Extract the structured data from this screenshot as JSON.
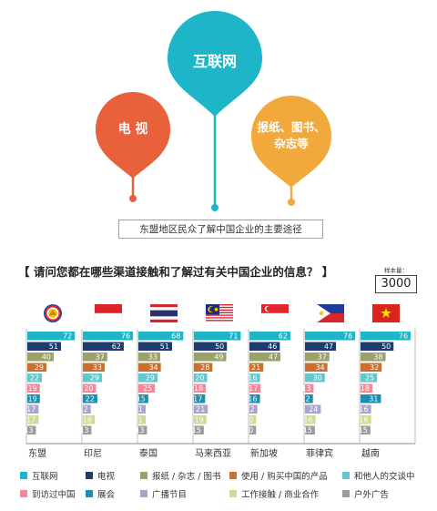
{
  "header_graphic": {
    "source_label": "东盟地区民众了解中国企业的主要途径",
    "pins": [
      {
        "label_lines": [
          "互联网"
        ],
        "color": "#1fb5c8"
      },
      {
        "label_lines": [
          "电 视"
        ],
        "color": "#e8613a"
      },
      {
        "label_lines": [
          "报纸、图书、",
          "杂志等"
        ],
        "color": "#f2a93b"
      }
    ]
  },
  "question": "【 请问您都在哪些渠道接触和了解过有关中国企业的信息？ 】",
  "sample": {
    "label": "样本量：",
    "value": "3000"
  },
  "flags": [
    "asean-flag",
    "indonesia-flag",
    "thailand-flag",
    "malaysia-flag",
    "singapore-flag",
    "philippines-flag",
    "vietnam-flag"
  ],
  "chart_data": {
    "type": "bar",
    "title": "",
    "xlabel": "",
    "ylabel": "",
    "xlim": [
      0,
      80
    ],
    "categories": [
      "东盟",
      "印尼",
      "泰国",
      "马来西亚",
      "新加坡",
      "菲律宾",
      "越南"
    ],
    "series": [
      {
        "name": "互联网",
        "color": "#1fb5c8",
        "values": [
          72,
          76,
          68,
          71,
          62,
          76,
          76
        ]
      },
      {
        "name": "电视",
        "color": "#1f3a6e",
        "values": [
          51,
          62,
          51,
          50,
          46,
          47,
          50
        ]
      },
      {
        "name": "报纸 / 杂志 / 图书",
        "color": "#9aa26a",
        "values": [
          40,
          37,
          33,
          49,
          47,
          37,
          38
        ]
      },
      {
        "name": "使用 / 购买中国的产品",
        "color": "#c9702e",
        "values": [
          29,
          33,
          34,
          28,
          21,
          34,
          32
        ]
      },
      {
        "name": "和他人的交谈中",
        "color": "#66c6ce",
        "values": [
          22,
          29,
          29,
          20,
          16,
          30,
          25
        ]
      },
      {
        "name": "到访过中国",
        "color": "#f08a9b",
        "values": [
          19,
          20,
          25,
          18,
          17,
          13,
          18
        ]
      },
      {
        "name": "展会",
        "color": "#1a8fb2",
        "values": [
          19,
          22,
          15,
          17,
          16,
          12,
          31
        ]
      },
      {
        "name": "广播节目",
        "color": "#a9a4cf",
        "values": [
          17,
          12,
          11,
          21,
          12,
          24,
          16
        ]
      },
      {
        "name": "工作接触 / 商业合作",
        "color": "#c8dc93",
        "values": [
          17,
          18,
          11,
          19,
          10,
          16,
          16
        ]
      },
      {
        "name": "户外广告",
        "color": "#9c9c9c",
        "values": [
          13,
          13,
          13,
          15,
          10,
          15,
          15
        ]
      }
    ],
    "grid": false,
    "legend_position": "bottom"
  }
}
